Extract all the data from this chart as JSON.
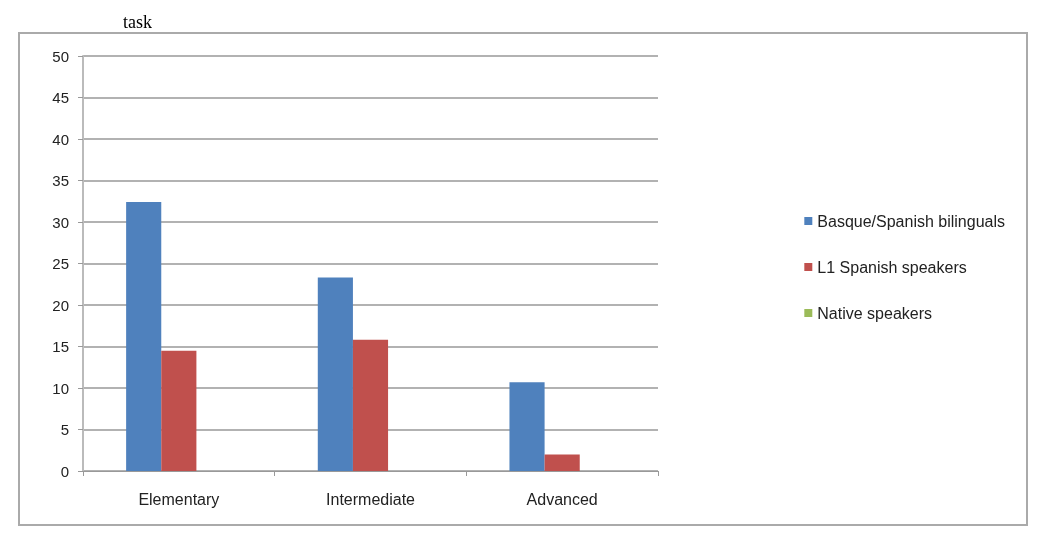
{
  "chart_data": {
    "type": "bar",
    "title": "task",
    "categories": [
      "Elementary",
      "Intermediate",
      "Advanced"
    ],
    "series": [
      {
        "name": "Basque/Spanish bilinguals",
        "color": "#4f81bd",
        "values": [
          32.4,
          23.3,
          10.7
        ]
      },
      {
        "name": "L1 Spanish speakers",
        "color": "#c0504d",
        "values": [
          14.5,
          15.8,
          2.0
        ]
      },
      {
        "name": "Native speakers",
        "color": "#9bbb59",
        "values": [
          0,
          0,
          0
        ]
      }
    ],
    "ylim": [
      0,
      50
    ],
    "yticks": [
      0,
      5,
      10,
      15,
      20,
      25,
      30,
      35,
      40,
      45,
      50
    ],
    "grid": "y",
    "legend": "right"
  }
}
